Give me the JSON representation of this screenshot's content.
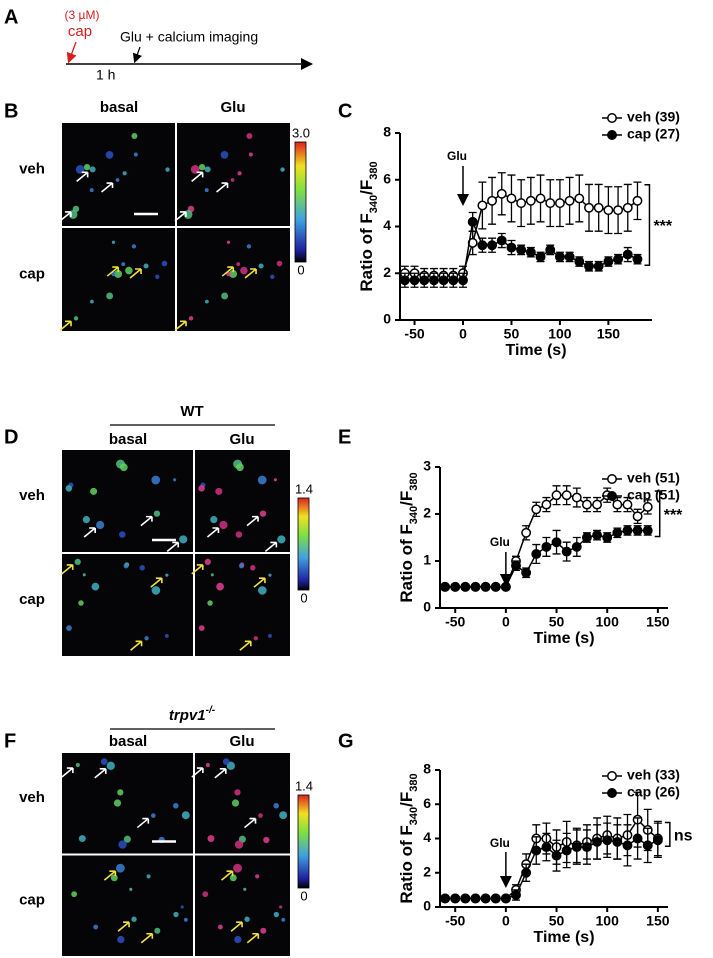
{
  "figure": {
    "labels": [
      "A",
      "B",
      "C",
      "D",
      "E",
      "F",
      "G"
    ],
    "timeline": {
      "dose": "(3 µM)",
      "drug": "cap",
      "event": "Glu + calcium imaging",
      "interval": "1 h"
    },
    "panel_b": {
      "columns": [
        "basal",
        "Glu"
      ],
      "rows": [
        "veh",
        "cap"
      ],
      "scale": [
        "3.0",
        "0"
      ]
    },
    "panel_d": {
      "group": "WT",
      "columns": [
        "basal",
        "Glu"
      ],
      "rows": [
        "veh",
        "cap"
      ],
      "scale": [
        "1.4",
        "0"
      ]
    },
    "panel_f": {
      "group": [
        "trpv1",
        "-/-"
      ],
      "columns": [
        "basal",
        "Glu"
      ],
      "rows": [
        "veh",
        "cap"
      ],
      "scale": [
        "1.4",
        "0"
      ]
    }
  },
  "chart_data": [
    {
      "type": "line",
      "xlabel": "Time (s)",
      "ylabel": [
        "Ratio of F",
        "340",
        "/F",
        "380"
      ],
      "x": [
        -60,
        -50,
        -40,
        -30,
        -20,
        -10,
        0,
        10,
        20,
        30,
        40,
        50,
        60,
        70,
        80,
        90,
        100,
        110,
        120,
        130,
        140,
        150,
        160,
        170,
        180
      ],
      "xlim": [
        -65,
        195
      ],
      "xticks": [
        -50,
        0,
        50,
        100,
        150
      ],
      "ylim": [
        0,
        8
      ],
      "yticks": [
        0,
        2,
        4,
        6,
        8
      ],
      "annotations": {
        "stimulus": "Glu",
        "significance": "***"
      },
      "series": [
        {
          "name": "veh (39)",
          "color": "#000000",
          "fill": "#ffffff",
          "values": [
            2.0,
            2.0,
            1.9,
            1.9,
            1.9,
            1.9,
            2.0,
            3.3,
            4.9,
            5.1,
            5.4,
            5.2,
            5.0,
            5.1,
            5.2,
            5.0,
            5.0,
            5.1,
            5.2,
            4.8,
            4.8,
            4.7,
            4.7,
            4.8,
            5.1
          ],
          "errors": [
            0.3,
            0.3,
            0.3,
            0.3,
            0.3,
            0.3,
            0.3,
            0.5,
            1.0,
            1.0,
            0.9,
            1.0,
            1.0,
            1.0,
            1.0,
            1.0,
            1.0,
            1.0,
            1.0,
            1.0,
            1.0,
            1.0,
            1.0,
            1.0,
            0.8
          ]
        },
        {
          "name": "cap (27)",
          "color": "#000000",
          "fill": "#000000",
          "values": [
            1.7,
            1.7,
            1.7,
            1.7,
            1.7,
            1.7,
            1.7,
            4.2,
            3.2,
            3.2,
            3.4,
            3.1,
            3.0,
            2.9,
            2.7,
            3.0,
            2.7,
            2.7,
            2.5,
            2.3,
            2.3,
            2.5,
            2.6,
            2.8,
            2.6
          ],
          "errors": [
            0.3,
            0.3,
            0.3,
            0.3,
            0.3,
            0.3,
            0.3,
            0.4,
            0.3,
            0.3,
            0.3,
            0.3,
            0.2,
            0.2,
            0.2,
            0.2,
            0.2,
            0.2,
            0.2,
            0.2,
            0.2,
            0.2,
            0.2,
            0.3,
            0.2
          ]
        }
      ]
    },
    {
      "type": "line",
      "xlabel": "Time (s)",
      "ylabel": [
        "Ratio of F",
        "340",
        "/F",
        "380"
      ],
      "x": [
        -60,
        -50,
        -40,
        -30,
        -20,
        -10,
        0,
        10,
        20,
        30,
        40,
        50,
        60,
        70,
        80,
        90,
        100,
        110,
        120,
        130,
        140
      ],
      "xlim": [
        -65,
        160
      ],
      "xticks": [
        -50,
        0,
        50,
        100,
        150
      ],
      "ylim": [
        0,
        3
      ],
      "yticks": [
        0,
        1,
        2,
        3
      ],
      "annotations": {
        "stimulus": "Glu",
        "significance": "***"
      },
      "series": [
        {
          "name": "veh (51)",
          "color": "#000000",
          "fill": "#ffffff",
          "values": [
            0.45,
            0.45,
            0.45,
            0.45,
            0.45,
            0.45,
            0.45,
            1.0,
            1.6,
            2.1,
            2.2,
            2.4,
            2.4,
            2.35,
            2.2,
            2.2,
            2.4,
            2.2,
            2.2,
            1.95,
            2.15
          ],
          "errors": [
            0.05,
            0.05,
            0.05,
            0.05,
            0.05,
            0.05,
            0.05,
            0.1,
            0.15,
            0.15,
            0.15,
            0.2,
            0.2,
            0.2,
            0.15,
            0.15,
            0.15,
            0.15,
            0.15,
            0.15,
            0.15
          ]
        },
        {
          "name": "cap (51)",
          "color": "#000000",
          "fill": "#000000",
          "values": [
            0.45,
            0.45,
            0.45,
            0.45,
            0.45,
            0.45,
            0.45,
            0.9,
            0.75,
            1.15,
            1.3,
            1.4,
            1.2,
            1.3,
            1.5,
            1.55,
            1.5,
            1.6,
            1.65,
            1.65,
            1.65
          ],
          "errors": [
            0.05,
            0.05,
            0.05,
            0.05,
            0.05,
            0.05,
            0.05,
            0.1,
            0.1,
            0.2,
            0.2,
            0.25,
            0.2,
            0.2,
            0.1,
            0.1,
            0.1,
            0.1,
            0.1,
            0.1,
            0.1
          ]
        }
      ]
    },
    {
      "type": "line",
      "xlabel": "Time (s)",
      "ylabel": [
        "Ratio of F",
        "340",
        "/F",
        "380"
      ],
      "x": [
        -60,
        -50,
        -40,
        -30,
        -20,
        -10,
        0,
        10,
        20,
        30,
        40,
        50,
        60,
        70,
        80,
        90,
        100,
        110,
        120,
        130,
        140,
        150
      ],
      "xlim": [
        -65,
        160
      ],
      "xticks": [
        -50,
        0,
        50,
        100,
        150
      ],
      "ylim": [
        0,
        8
      ],
      "yticks": [
        0,
        2,
        4,
        6,
        8
      ],
      "annotations": {
        "stimulus": "Glu",
        "significance": "ns"
      },
      "series": [
        {
          "name": "veh (33)",
          "color": "#000000",
          "fill": "#ffffff",
          "values": [
            0.5,
            0.5,
            0.5,
            0.5,
            0.5,
            0.5,
            0.5,
            1.0,
            2.5,
            4.0,
            4.0,
            3.5,
            3.8,
            3.6,
            3.8,
            4.0,
            4.2,
            4.0,
            4.2,
            5.1,
            4.5,
            4.0
          ],
          "errors": [
            0.1,
            0.1,
            0.1,
            0.1,
            0.1,
            0.1,
            0.1,
            0.3,
            0.6,
            0.8,
            0.9,
            1.0,
            1.2,
            1.0,
            1.0,
            1.2,
            1.1,
            1.2,
            1.2,
            1.6,
            1.2,
            1.0
          ]
        },
        {
          "name": "cap (26)",
          "color": "#000000",
          "fill": "#000000",
          "values": [
            0.5,
            0.5,
            0.5,
            0.5,
            0.5,
            0.5,
            0.5,
            0.7,
            2.0,
            3.3,
            3.5,
            3.0,
            3.3,
            3.5,
            3.5,
            3.8,
            3.9,
            3.8,
            3.6,
            4.0,
            3.6,
            3.9
          ],
          "errors": [
            0.1,
            0.1,
            0.1,
            0.1,
            0.1,
            0.1,
            0.1,
            0.3,
            0.5,
            0.8,
            0.8,
            0.9,
            1.0,
            1.0,
            1.0,
            1.0,
            1.0,
            1.0,
            1.2,
            1.2,
            1.0,
            1.0
          ]
        }
      ]
    }
  ]
}
